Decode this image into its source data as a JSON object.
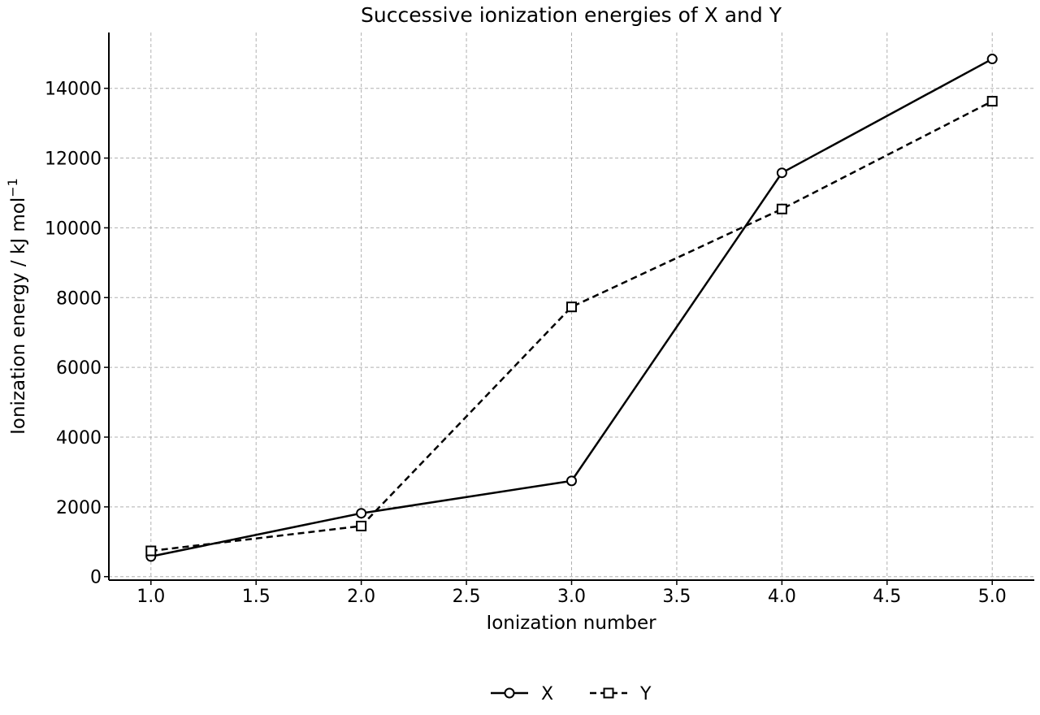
{
  "chart_data": {
    "type": "line",
    "title": "Successive ionization energies of X and Y",
    "xlabel": "Ionization number",
    "ylabel": "Ionization energy / kJ mol",
    "ylabel_superscript": "−1",
    "xlim": [
      0.8,
      5.2
    ],
    "ylim": [
      -100,
      15600
    ],
    "x_ticks": [
      "1.0",
      "1.5",
      "2.0",
      "2.5",
      "3.0",
      "3.5",
      "4.0",
      "4.5",
      "5.0"
    ],
    "y_ticks": [
      "0",
      "2000",
      "4000",
      "6000",
      "8000",
      "10000",
      "12000",
      "14000"
    ],
    "grid": true,
    "legend_position": "bottom-center",
    "series": [
      {
        "name": "X",
        "x": [
          1,
          2,
          3,
          4,
          5
        ],
        "values": [
          578,
          1817,
          2745,
          11577,
          14842
        ],
        "marker": "circle",
        "line_style": "solid",
        "color": "#000000"
      },
      {
        "name": "Y",
        "x": [
          1,
          2,
          3,
          4,
          5
        ],
        "values": [
          738,
          1451,
          7733,
          10540,
          13630
        ],
        "marker": "square",
        "line_style": "dashed",
        "color": "#000000"
      }
    ]
  }
}
